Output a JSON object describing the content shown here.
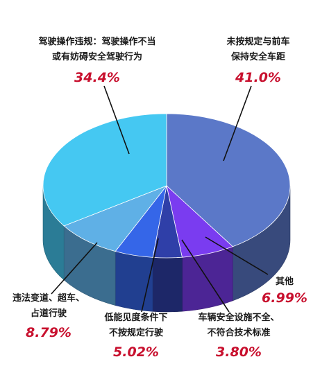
{
  "chart_data": {
    "type": "pie",
    "style": "3d",
    "slices": [
      {
        "key": "fast",
        "value": 41.0,
        "pct_label": "41.0%",
        "lines": [
          "未按规定与前车",
          "保持安全车距"
        ],
        "color": "#5b78c8"
      },
      {
        "key": "other",
        "value": 6.99,
        "pct_label": "6.99%",
        "lines": [
          "其他"
        ],
        "color": "#7a3cf0"
      },
      {
        "key": "lights",
        "value": 3.8,
        "pct_label": "3.80%",
        "lines": [
          "车辆安全设施不全、",
          "不符合技术标准"
        ],
        "color": "#2f3fa8"
      },
      {
        "key": "visibility",
        "value": 5.02,
        "pct_label": "5.02%",
        "lines": [
          "低能见度条件下",
          "不按规定行驶"
        ],
        "color": "#3566e8"
      },
      {
        "key": "lane",
        "value": 8.79,
        "pct_label": "8.79%",
        "lines": [
          "违法变道、超车、",
          "占道行驶"
        ],
        "color": "#5fb0e6"
      },
      {
        "key": "operation",
        "value": 34.4,
        "pct_label": "34.4%",
        "lines": [
          "驾驶操作违规：驾驶操作不当",
          "或有妨碍安全驾驶行为"
        ],
        "color": "#45c8f2"
      }
    ]
  }
}
